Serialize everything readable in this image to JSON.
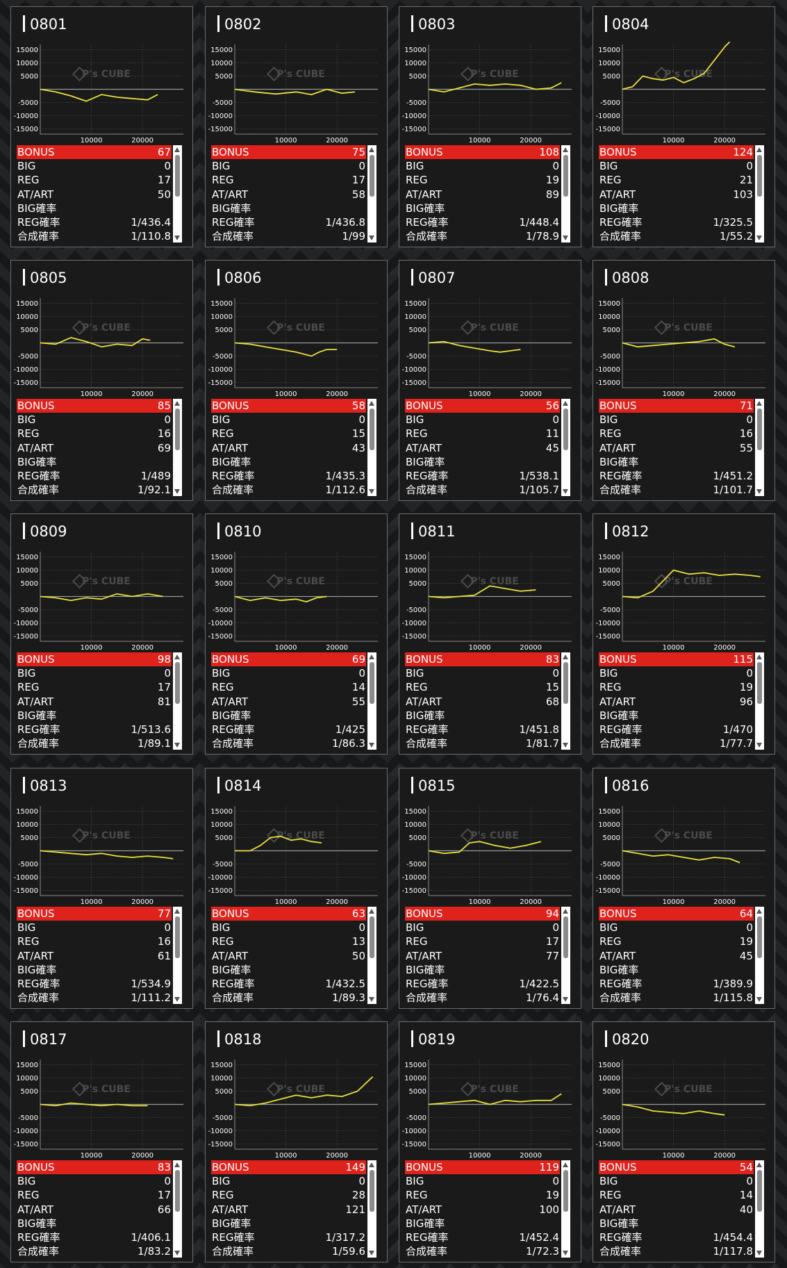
{
  "labels": {
    "bonus": "BONUS",
    "big": "BIG",
    "reg": "REG",
    "atart": "AT/ART",
    "big_rate": "BIG確率",
    "reg_rate": "REG確率",
    "combined_rate": "合成確率"
  },
  "colors": {
    "line": "#e8e03a",
    "bonus_bg": "#e0221d",
    "zero_line": "#9a9a9a"
  },
  "chart_data": [
    {
      "type": "line",
      "title": "0801",
      "y_ticks": [
        "15000",
        "10000",
        "5000",
        "-5000",
        "-10000",
        "-15000"
      ],
      "x_ticks": [
        "10000",
        "20000"
      ],
      "xlim": [
        0,
        28000
      ],
      "ylim": [
        -17000,
        17000
      ],
      "x": [
        0,
        3000,
        6000,
        9000,
        12000,
        15000,
        18000,
        21000,
        23000
      ],
      "y": [
        0,
        -1000,
        -2500,
        -4500,
        -2000,
        -3000,
        -3500,
        -4000,
        -2000
      ],
      "stats": {
        "bonus": "67",
        "big": "0",
        "reg": "17",
        "atart": "50",
        "big_rate": "",
        "reg_rate": "1/436.4",
        "combined_rate": "1/110.8"
      }
    },
    {
      "type": "line",
      "title": "0802",
      "y_ticks": [
        "15000",
        "10000",
        "5000",
        "-5000",
        "-10000",
        "-15000"
      ],
      "x_ticks": [
        "10000",
        "20000"
      ],
      "xlim": [
        0,
        28000
      ],
      "ylim": [
        -17000,
        17000
      ],
      "x": [
        0,
        4000,
        8000,
        12000,
        15000,
        18000,
        21000,
        23500
      ],
      "y": [
        0,
        -1000,
        -1800,
        -1000,
        -2000,
        0,
        -1500,
        -1000
      ],
      "stats": {
        "bonus": "75",
        "big": "0",
        "reg": "17",
        "atart": "58",
        "big_rate": "",
        "reg_rate": "1/436.8",
        "combined_rate": "1/99"
      }
    },
    {
      "type": "line",
      "title": "0803",
      "y_ticks": [
        "15000",
        "10000",
        "5000",
        "-5000",
        "-10000",
        "-15000"
      ],
      "x_ticks": [
        "10000",
        "20000"
      ],
      "xlim": [
        0,
        28000
      ],
      "ylim": [
        -17000,
        17000
      ],
      "x": [
        0,
        3000,
        6000,
        9000,
        12000,
        15000,
        18000,
        21000,
        24000,
        26000
      ],
      "y": [
        0,
        -1000,
        500,
        2000,
        1500,
        2000,
        1500,
        0,
        500,
        2500
      ],
      "stats": {
        "bonus": "108",
        "big": "0",
        "reg": "19",
        "atart": "89",
        "big_rate": "",
        "reg_rate": "1/448.4",
        "combined_rate": "1/78.9"
      }
    },
    {
      "type": "line",
      "title": "0804",
      "y_ticks": [
        "15000",
        "10000",
        "5000",
        "-5000",
        "-10000",
        "-15000"
      ],
      "x_ticks": [
        "10000",
        "20000"
      ],
      "xlim": [
        0,
        28000
      ],
      "ylim": [
        -17000,
        17000
      ],
      "x": [
        0,
        2000,
        4000,
        6000,
        8000,
        10000,
        12000,
        14000,
        16000,
        18000,
        20000,
        21000
      ],
      "y": [
        0,
        1000,
        5000,
        4000,
        3500,
        4500,
        2500,
        4000,
        6000,
        11000,
        16000,
        18000
      ],
      "stats": {
        "bonus": "124",
        "big": "0",
        "reg": "21",
        "atart": "103",
        "big_rate": "",
        "reg_rate": "1/325.5",
        "combined_rate": "1/55.2"
      }
    },
    {
      "type": "line",
      "title": "0805",
      "y_ticks": [
        "15000",
        "10000",
        "5000",
        "-5000",
        "-10000",
        "-15000"
      ],
      "x_ticks": [
        "10000",
        "20000"
      ],
      "xlim": [
        0,
        28000
      ],
      "ylim": [
        -17000,
        17000
      ],
      "x": [
        0,
        3000,
        6000,
        9000,
        12000,
        15000,
        18000,
        20000,
        21500
      ],
      "y": [
        0,
        -500,
        2000,
        500,
        -1500,
        -500,
        -1000,
        1500,
        1000
      ],
      "stats": {
        "bonus": "85",
        "big": "0",
        "reg": "16",
        "atart": "69",
        "big_rate": "",
        "reg_rate": "1/489",
        "combined_rate": "1/92.1"
      }
    },
    {
      "type": "line",
      "title": "0806",
      "y_ticks": [
        "15000",
        "10000",
        "5000",
        "-5000",
        "-10000",
        "-15000"
      ],
      "x_ticks": [
        "10000",
        "20000"
      ],
      "xlim": [
        0,
        28000
      ],
      "ylim": [
        -17000,
        17000
      ],
      "x": [
        0,
        3000,
        6000,
        9000,
        12000,
        15000,
        16500,
        18000,
        20000
      ],
      "y": [
        0,
        -500,
        -1500,
        -2500,
        -3500,
        -5000,
        -3500,
        -2500,
        -2500
      ],
      "stats": {
        "bonus": "58",
        "big": "0",
        "reg": "15",
        "atart": "43",
        "big_rate": "",
        "reg_rate": "1/435.3",
        "combined_rate": "1/112.6"
      }
    },
    {
      "type": "line",
      "title": "0807",
      "y_ticks": [
        "15000",
        "10000",
        "5000",
        "-5000",
        "-10000",
        "-15000"
      ],
      "x_ticks": [
        "10000",
        "20000"
      ],
      "xlim": [
        0,
        28000
      ],
      "ylim": [
        -17000,
        17000
      ],
      "x": [
        0,
        3000,
        6000,
        9000,
        12000,
        14000,
        16000,
        18000
      ],
      "y": [
        0,
        500,
        -1000,
        -2000,
        -3000,
        -3500,
        -3000,
        -2500
      ],
      "stats": {
        "bonus": "56",
        "big": "0",
        "reg": "11",
        "atart": "45",
        "big_rate": "",
        "reg_rate": "1/538.1",
        "combined_rate": "1/105.7"
      }
    },
    {
      "type": "line",
      "title": "0808",
      "y_ticks": [
        "15000",
        "10000",
        "5000",
        "-5000",
        "-10000",
        "-15000"
      ],
      "x_ticks": [
        "10000",
        "20000"
      ],
      "xlim": [
        0,
        28000
      ],
      "ylim": [
        -17000,
        17000
      ],
      "x": [
        0,
        3000,
        6000,
        9000,
        12000,
        15000,
        18000,
        20000,
        22000
      ],
      "y": [
        0,
        -1500,
        -1000,
        -500,
        0,
        500,
        1500,
        -500,
        -1500
      ],
      "stats": {
        "bonus": "71",
        "big": "0",
        "reg": "16",
        "atart": "55",
        "big_rate": "",
        "reg_rate": "1/451.2",
        "combined_rate": "1/101.7"
      }
    },
    {
      "type": "line",
      "title": "0809",
      "y_ticks": [
        "15000",
        "10000",
        "5000",
        "-5000",
        "-10000",
        "-15000"
      ],
      "x_ticks": [
        "10000",
        "20000"
      ],
      "xlim": [
        0,
        28000
      ],
      "ylim": [
        -17000,
        17000
      ],
      "x": [
        0,
        3000,
        6000,
        9000,
        12000,
        15000,
        18000,
        21000,
        24000
      ],
      "y": [
        0,
        -500,
        -1500,
        -500,
        -1000,
        1000,
        0,
        1000,
        0
      ],
      "stats": {
        "bonus": "98",
        "big": "0",
        "reg": "17",
        "atart": "81",
        "big_rate": "",
        "reg_rate": "1/513.6",
        "combined_rate": "1/89.1"
      }
    },
    {
      "type": "line",
      "title": "0810",
      "y_ticks": [
        "15000",
        "10000",
        "5000",
        "-5000",
        "-10000",
        "-15000"
      ],
      "x_ticks": [
        "10000",
        "20000"
      ],
      "xlim": [
        0,
        28000
      ],
      "ylim": [
        -17000,
        17000
      ],
      "x": [
        0,
        3000,
        6000,
        9000,
        12000,
        14000,
        16000,
        18000
      ],
      "y": [
        0,
        -1500,
        -500,
        -1500,
        -1000,
        -2000,
        -500,
        0
      ],
      "stats": {
        "bonus": "69",
        "big": "0",
        "reg": "14",
        "atart": "55",
        "big_rate": "",
        "reg_rate": "1/425",
        "combined_rate": "1/86.3"
      }
    },
    {
      "type": "line",
      "title": "0811",
      "y_ticks": [
        "15000",
        "10000",
        "5000",
        "-5000",
        "-10000",
        "-15000"
      ],
      "x_ticks": [
        "10000",
        "20000"
      ],
      "xlim": [
        0,
        28000
      ],
      "ylim": [
        -17000,
        17000
      ],
      "x": [
        0,
        3000,
        6000,
        9000,
        12000,
        15000,
        18000,
        21000
      ],
      "y": [
        0,
        -500,
        0,
        500,
        4000,
        3000,
        2000,
        2500
      ],
      "stats": {
        "bonus": "83",
        "big": "0",
        "reg": "15",
        "atart": "68",
        "big_rate": "",
        "reg_rate": "1/451.8",
        "combined_rate": "1/81.7"
      }
    },
    {
      "type": "line",
      "title": "0812",
      "y_ticks": [
        "15000",
        "10000",
        "5000",
        "-5000",
        "-10000",
        "-15000"
      ],
      "x_ticks": [
        "10000",
        "20000"
      ],
      "xlim": [
        0,
        28000
      ],
      "ylim": [
        -17000,
        17000
      ],
      "x": [
        0,
        3000,
        6000,
        8000,
        10000,
        13000,
        16000,
        19000,
        22000,
        25000,
        27000
      ],
      "y": [
        0,
        -500,
        2000,
        6000,
        10000,
        8500,
        9000,
        8000,
        8500,
        8000,
        7500
      ],
      "stats": {
        "bonus": "115",
        "big": "0",
        "reg": "19",
        "atart": "96",
        "big_rate": "",
        "reg_rate": "1/470",
        "combined_rate": "1/77.7"
      }
    },
    {
      "type": "line",
      "title": "0813",
      "y_ticks": [
        "15000",
        "10000",
        "5000",
        "-5000",
        "-10000",
        "-15000"
      ],
      "x_ticks": [
        "10000",
        "20000"
      ],
      "xlim": [
        0,
        28000
      ],
      "ylim": [
        -17000,
        17000
      ],
      "x": [
        0,
        3000,
        6000,
        9000,
        12000,
        15000,
        18000,
        21000,
        24000,
        26000
      ],
      "y": [
        0,
        -500,
        -1000,
        -1500,
        -1000,
        -2000,
        -2500,
        -2000,
        -2500,
        -3000
      ],
      "stats": {
        "bonus": "77",
        "big": "0",
        "reg": "16",
        "atart": "61",
        "big_rate": "",
        "reg_rate": "1/534.9",
        "combined_rate": "1/111.2"
      }
    },
    {
      "type": "line",
      "title": "0814",
      "y_ticks": [
        "15000",
        "10000",
        "5000",
        "-5000",
        "-10000",
        "-15000"
      ],
      "x_ticks": [
        "10000",
        "20000"
      ],
      "xlim": [
        0,
        28000
      ],
      "ylim": [
        -17000,
        17000
      ],
      "x": [
        0,
        3000,
        5000,
        7000,
        9000,
        11000,
        13000,
        15000,
        17000
      ],
      "y": [
        0,
        0,
        2000,
        5000,
        5500,
        4000,
        4500,
        3500,
        3000
      ],
      "stats": {
        "bonus": "63",
        "big": "0",
        "reg": "13",
        "atart": "50",
        "big_rate": "",
        "reg_rate": "1/432.5",
        "combined_rate": "1/89.3"
      }
    },
    {
      "type": "line",
      "title": "0815",
      "y_ticks": [
        "15000",
        "10000",
        "5000",
        "-5000",
        "-10000",
        "-15000"
      ],
      "x_ticks": [
        "10000",
        "20000"
      ],
      "xlim": [
        0,
        28000
      ],
      "ylim": [
        -17000,
        17000
      ],
      "x": [
        0,
        3000,
        6000,
        8000,
        10000,
        13000,
        16000,
        19000,
        22000
      ],
      "y": [
        0,
        -1000,
        -500,
        3000,
        3500,
        2000,
        1000,
        2000,
        3500
      ],
      "stats": {
        "bonus": "94",
        "big": "0",
        "reg": "17",
        "atart": "77",
        "big_rate": "",
        "reg_rate": "1/422.5",
        "combined_rate": "1/76.4"
      }
    },
    {
      "type": "line",
      "title": "0816",
      "y_ticks": [
        "15000",
        "10000",
        "5000",
        "-5000",
        "-10000",
        "-15000"
      ],
      "x_ticks": [
        "10000",
        "20000"
      ],
      "xlim": [
        0,
        28000
      ],
      "ylim": [
        -17000,
        17000
      ],
      "x": [
        0,
        3000,
        6000,
        9000,
        12000,
        15000,
        18000,
        21000,
        23000
      ],
      "y": [
        0,
        -1000,
        -2000,
        -1500,
        -2500,
        -3500,
        -2500,
        -3000,
        -4500
      ],
      "stats": {
        "bonus": "64",
        "big": "0",
        "reg": "19",
        "atart": "45",
        "big_rate": "",
        "reg_rate": "1/389.9",
        "combined_rate": "1/115.8"
      }
    },
    {
      "type": "line",
      "title": "0817",
      "y_ticks": [
        "15000",
        "10000",
        "5000",
        "-5000",
        "-10000",
        "-15000"
      ],
      "x_ticks": [
        "10000",
        "20000"
      ],
      "xlim": [
        0,
        28000
      ],
      "ylim": [
        -17000,
        17000
      ],
      "x": [
        0,
        3000,
        6000,
        9000,
        12000,
        15000,
        18000,
        21000
      ],
      "y": [
        0,
        -500,
        500,
        0,
        -500,
        0,
        -500,
        -500
      ],
      "stats": {
        "bonus": "83",
        "big": "0",
        "reg": "17",
        "atart": "66",
        "big_rate": "",
        "reg_rate": "1/406.1",
        "combined_rate": "1/83.2"
      }
    },
    {
      "type": "line",
      "title": "0818",
      "y_ticks": [
        "15000",
        "10000",
        "5000",
        "-5000",
        "-10000",
        "-15000"
      ],
      "x_ticks": [
        "10000",
        "20000"
      ],
      "xlim": [
        0,
        28000
      ],
      "ylim": [
        -17000,
        17000
      ],
      "x": [
        0,
        3000,
        6000,
        9000,
        12000,
        15000,
        18000,
        21000,
        24000,
        27000
      ],
      "y": [
        0,
        -500,
        500,
        2000,
        3500,
        2500,
        3500,
        3000,
        5000,
        10500
      ],
      "stats": {
        "bonus": "149",
        "big": "0",
        "reg": "28",
        "atart": "121",
        "big_rate": "",
        "reg_rate": "1/317.2",
        "combined_rate": "1/59.6"
      }
    },
    {
      "type": "line",
      "title": "0819",
      "y_ticks": [
        "15000",
        "10000",
        "5000",
        "-5000",
        "-10000",
        "-15000"
      ],
      "x_ticks": [
        "10000",
        "20000"
      ],
      "xlim": [
        0,
        28000
      ],
      "ylim": [
        -17000,
        17000
      ],
      "x": [
        0,
        3000,
        6000,
        9000,
        12000,
        15000,
        18000,
        21000,
        24000,
        26000
      ],
      "y": [
        0,
        500,
        1000,
        1500,
        0,
        1500,
        1000,
        1500,
        1500,
        4000
      ],
      "stats": {
        "bonus": "119",
        "big": "0",
        "reg": "19",
        "atart": "100",
        "big_rate": "",
        "reg_rate": "1/452.4",
        "combined_rate": "1/72.3"
      }
    },
    {
      "type": "line",
      "title": "0820",
      "y_ticks": [
        "15000",
        "10000",
        "5000",
        "-5000",
        "-10000",
        "-15000"
      ],
      "x_ticks": [
        "10000",
        "20000"
      ],
      "xlim": [
        0,
        28000
      ],
      "ylim": [
        -17000,
        17000
      ],
      "x": [
        0,
        3000,
        6000,
        9000,
        12000,
        15000,
        18000,
        20000
      ],
      "y": [
        0,
        -1000,
        -2500,
        -3000,
        -3500,
        -2500,
        -3500,
        -4000
      ],
      "stats": {
        "bonus": "54",
        "big": "0",
        "reg": "14",
        "atart": "40",
        "big_rate": "",
        "reg_rate": "1/454.4",
        "combined_rate": "1/117.8"
      }
    }
  ]
}
